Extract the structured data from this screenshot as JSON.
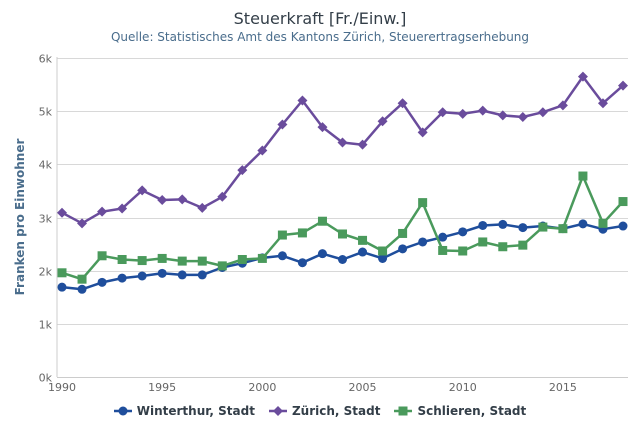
{
  "chart_data": {
    "type": "line",
    "title": "Steuerkraft [Fr./Einw.]",
    "subtitle": "Quelle: Statistisches Amt des Kantons Zürich, Steuerertragserhebung",
    "xlabel": "",
    "ylabel": "Franken pro Einwohner",
    "xlim": [
      1990,
      2018
    ],
    "ylim": [
      0,
      6000
    ],
    "grid": true,
    "legend_position": "bottom",
    "y_ticks": [
      {
        "value": 0,
        "label": "0k"
      },
      {
        "value": 1000,
        "label": "1k"
      },
      {
        "value": 2000,
        "label": "2k"
      },
      {
        "value": 3000,
        "label": "3k"
      },
      {
        "value": 4000,
        "label": "4k"
      },
      {
        "value": 5000,
        "label": "5k"
      },
      {
        "value": 6000,
        "label": "6k"
      }
    ],
    "x_ticks": [
      {
        "value": 1990,
        "label": "1990"
      },
      {
        "value": 1995,
        "label": "1995"
      },
      {
        "value": 2000,
        "label": "2000"
      },
      {
        "value": 2005,
        "label": "2005"
      },
      {
        "value": 2010,
        "label": "2010"
      },
      {
        "value": 2015,
        "label": "2015"
      }
    ],
    "x": [
      1990,
      1991,
      1992,
      1993,
      1994,
      1995,
      1996,
      1997,
      1998,
      1999,
      2000,
      2001,
      2002,
      2003,
      2004,
      2005,
      2006,
      2007,
      2008,
      2009,
      2010,
      2011,
      2012,
      2013,
      2014,
      2015,
      2016,
      2017,
      2018
    ],
    "series": [
      {
        "name": "Winterthur, Stadt",
        "color": "#1f4e9c",
        "marker": "circle",
        "values": [
          1690,
          1650,
          1780,
          1860,
          1900,
          1950,
          1920,
          1920,
          2060,
          2140,
          2240,
          2280,
          2150,
          2320,
          2210,
          2350,
          2230,
          2410,
          2540,
          2630,
          2730,
          2850,
          2870,
          2810,
          2840,
          2790,
          2880,
          2780,
          2840
        ]
      },
      {
        "name": "Zürich, Stadt",
        "color": "#6a4c9c",
        "marker": "diamond",
        "values": [
          3090,
          2890,
          3110,
          3170,
          3510,
          3330,
          3340,
          3180,
          3390,
          3890,
          4260,
          4750,
          5200,
          4700,
          4410,
          4370,
          4810,
          5150,
          4600,
          4980,
          4950,
          5010,
          4920,
          4890,
          4980,
          5110,
          5650,
          5150,
          5480
        ]
      },
      {
        "name": "Schlieren, Stadt",
        "color": "#4a9a5c",
        "marker": "square",
        "values": [
          1960,
          1840,
          2280,
          2210,
          2190,
          2230,
          2180,
          2180,
          2090,
          2210,
          2230,
          2670,
          2710,
          2930,
          2690,
          2570,
          2370,
          2700,
          3280,
          2380,
          2370,
          2540,
          2450,
          2480,
          2820,
          2790,
          3780,
          2890,
          3300
        ]
      }
    ]
  }
}
